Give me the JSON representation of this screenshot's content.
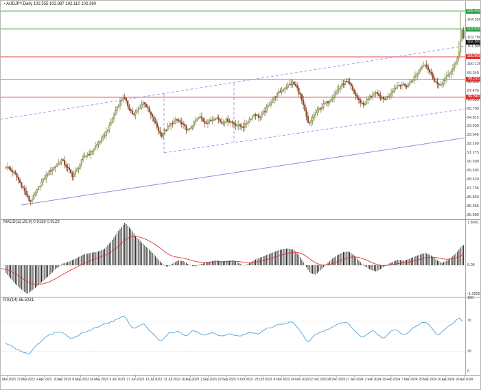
{
  "header": {
    "marker": "▪",
    "symbol": "AUDJPY,Daily",
    "ohlc": "102.555 102.887 102.110 102.360"
  },
  "colors": {
    "up_fill": "#ccd6a0",
    "up_border": "#6f7a38",
    "down_fill": "#a0522d",
    "down_border": "#7c3a1d",
    "green_line": "#86c98e",
    "red_line": "#f19090",
    "trend_dashed": "#9a9aee",
    "trend_solid": "#8c8cdc",
    "macd_bar": "#222222",
    "macd_signal": "#e03232",
    "rsi_line": "#4f9fd8",
    "tag_green": "#2f9e44",
    "tag_red": "#e03131",
    "tag_black": "#111111"
  },
  "price_axis": {
    "labels": [
      "104.550",
      "103.665",
      "102.780",
      "101.895",
      "101.010",
      "100.125",
      "99.240",
      "98.355",
      "97.470",
      "96.585",
      "95.700",
      "94.815",
      "93.930",
      "93.045",
      "92.160",
      "91.275",
      "90.390",
      "89.505",
      "88.620",
      "87.735",
      "86.850",
      "85.965",
      "85.080"
    ],
    "tags": [
      {
        "text": "105.430",
        "color": "green",
        "price": 105.43
      },
      {
        "text": "103.650",
        "color": "green",
        "price": 103.65
      },
      {
        "text": "102.360",
        "color": "black",
        "price": 102.36
      },
      {
        "text": "100.865",
        "color": "red",
        "price": 100.865
      },
      {
        "text": "98.615",
        "color": "red",
        "price": 98.615
      },
      {
        "text": "96.840",
        "color": "red",
        "price": 96.84
      }
    ]
  },
  "date_axis": [
    "1 Mar 2023",
    "17 Mar 2023",
    "4 Apr 2023",
    "20 Apr 2023",
    "8 May 2023",
    "24 May 2023",
    "9 Jun 2023",
    "27 Jun 2023",
    "13 Jul 2023",
    "31 Jul 2023",
    "16 Aug 2023",
    "1 Sep 2023",
    "19 Sep 2023",
    "5 Oct 2023",
    "23 Oct 2023",
    "8 Nov 2023",
    "24 Nov 2023",
    "12 Dec 2023",
    "28 Dec 2023",
    "17 Jan 2024",
    "2 Feb 2024",
    "20 Feb 2024",
    "7 Mar 2024",
    "25 Mar 2024",
    "10 Apr 2024",
    "26 Apr 2024"
  ],
  "chart_data": [
    {
      "type": "candlestick",
      "title": "AUDJPY, Daily",
      "ohlc_display": {
        "open": "102.555",
        "high": "102.887",
        "low": "102.110",
        "close": "102.360"
      },
      "y_range": [
        84.7,
        105.9
      ],
      "x_range_dates": [
        "1 Mar 2023",
        "26 Apr 2024"
      ],
      "close_path": [
        [
          0,
          90.3
        ],
        [
          10,
          89.8
        ],
        [
          20,
          89.2
        ],
        [
          30,
          88.0
        ],
        [
          42,
          86.4
        ],
        [
          50,
          87.3
        ],
        [
          58,
          88.3
        ],
        [
          68,
          89.3
        ],
        [
          78,
          89.9
        ],
        [
          88,
          90.6
        ],
        [
          96,
          89.8
        ],
        [
          104,
          89.0
        ],
        [
          112,
          89.8
        ],
        [
          120,
          90.9
        ],
        [
          130,
          91.3
        ],
        [
          138,
          92.0
        ],
        [
          148,
          92.8
        ],
        [
          158,
          94.0
        ],
        [
          168,
          95.8
        ],
        [
          178,
          96.9
        ],
        [
          186,
          95.8
        ],
        [
          193,
          95.0
        ],
        [
          200,
          95.7
        ],
        [
          208,
          96.4
        ],
        [
          216,
          95.3
        ],
        [
          224,
          94.3
        ],
        [
          233,
          93.0
        ],
        [
          241,
          93.7
        ],
        [
          249,
          94.3
        ],
        [
          257,
          94.6
        ],
        [
          265,
          94.0
        ],
        [
          273,
          93.5
        ],
        [
          281,
          94.3
        ],
        [
          289,
          94.9
        ],
        [
          297,
          94.3
        ],
        [
          305,
          94.5
        ],
        [
          313,
          94.9
        ],
        [
          321,
          94.3
        ],
        [
          329,
          94.6
        ],
        [
          337,
          94.3
        ],
        [
          345,
          94.0
        ],
        [
          353,
          93.9
        ],
        [
          361,
          94.6
        ],
        [
          369,
          95.2
        ],
        [
          377,
          94.8
        ],
        [
          385,
          95.6
        ],
        [
          392,
          96.3
        ],
        [
          400,
          97.0
        ],
        [
          408,
          97.5
        ],
        [
          416,
          97.9
        ],
        [
          424,
          98.3
        ],
        [
          430,
          97.9
        ],
        [
          436,
          97.0
        ],
        [
          443,
          95.3
        ],
        [
          448,
          94.0
        ],
        [
          454,
          94.9
        ],
        [
          462,
          95.6
        ],
        [
          470,
          96.1
        ],
        [
          478,
          96.5
        ],
        [
          486,
          97.2
        ],
        [
          494,
          97.9
        ],
        [
          502,
          98.4
        ],
        [
          508,
          98.1
        ],
        [
          514,
          97.3
        ],
        [
          521,
          96.5
        ],
        [
          528,
          96.1
        ],
        [
          536,
          96.8
        ],
        [
          544,
          97.3
        ],
        [
          551,
          96.9
        ],
        [
          558,
          96.6
        ],
        [
          566,
          97.2
        ],
        [
          574,
          97.8
        ],
        [
          582,
          98.2
        ],
        [
          590,
          97.9
        ],
        [
          598,
          98.5
        ],
        [
          606,
          99.2
        ],
        [
          612,
          99.9
        ],
        [
          618,
          100.2
        ],
        [
          624,
          99.4
        ],
        [
          630,
          98.7
        ],
        [
          638,
          97.9
        ],
        [
          645,
          98.5
        ],
        [
          652,
          99.1
        ],
        [
          658,
          99.7
        ],
        [
          663,
          100.4
        ],
        [
          667,
          101.4
        ],
        [
          670,
          102.9
        ],
        [
          672,
          103.7
        ],
        [
          674,
          102.7
        ],
        [
          676,
          102.36
        ]
      ],
      "spike_high": {
        "x": 669,
        "price": 105.35
      },
      "horizontal_lines": {
        "green": [
          105.43,
          103.65
        ],
        "red": [
          100.865,
          98.615,
          96.84
        ],
        "current_price": 102.36
      },
      "trendlines": [
        {
          "style": "dashed",
          "points": [
            [
              0,
              94.64
            ],
            [
              676,
              101.95
            ]
          ]
        },
        {
          "style": "dashed",
          "points": [
            [
              238,
              91.3
            ],
            [
              676,
              95.67
            ]
          ]
        },
        {
          "style": "dashed",
          "points": [
            [
              238,
              97.17
            ],
            [
              238,
              91.3
            ]
          ]
        },
        {
          "style": "dashed",
          "points": [
            [
              340,
              98.26
            ],
            [
              340,
              92.38
            ]
          ]
        },
        {
          "style": "solid",
          "points": [
            [
              30,
              86.1
            ],
            [
              676,
              92.79
            ]
          ]
        }
      ]
    },
    {
      "type": "bar",
      "subtype": "macd_histogram",
      "label": "MACD(12,26,9) 0.9138 0.9129",
      "axis_labels": [
        "1.8981",
        "0.00",
        "-1.2859"
      ],
      "y_range": [
        -1.2859,
        1.8981
      ],
      "values": [
        [
          0,
          -0.15
        ],
        [
          8,
          -0.38
        ],
        [
          18,
          -0.75
        ],
        [
          28,
          -1.05
        ],
        [
          38,
          -1.28
        ],
        [
          48,
          -1.05
        ],
        [
          58,
          -0.78
        ],
        [
          70,
          -0.45
        ],
        [
          80,
          -0.15
        ],
        [
          90,
          0.08
        ],
        [
          100,
          0.18
        ],
        [
          110,
          0.32
        ],
        [
          120,
          0.48
        ],
        [
          130,
          0.55
        ],
        [
          140,
          0.6
        ],
        [
          150,
          0.72
        ],
        [
          160,
          1.05
        ],
        [
          170,
          1.5
        ],
        [
          180,
          1.9
        ],
        [
          188,
          1.65
        ],
        [
          196,
          1.3
        ],
        [
          205,
          1.0
        ],
        [
          215,
          0.72
        ],
        [
          225,
          0.4
        ],
        [
          235,
          0.05
        ],
        [
          242,
          -0.08
        ],
        [
          250,
          0.08
        ],
        [
          258,
          0.22
        ],
        [
          266,
          0.18
        ],
        [
          274,
          0.02
        ],
        [
          282,
          -0.06
        ],
        [
          290,
          0.04
        ],
        [
          298,
          0.12
        ],
        [
          306,
          0.18
        ],
        [
          314,
          0.22
        ],
        [
          322,
          0.16
        ],
        [
          330,
          0.2
        ],
        [
          338,
          0.22
        ],
        [
          346,
          0.1
        ],
        [
          354,
          -0.02
        ],
        [
          362,
          0.1
        ],
        [
          370,
          0.25
        ],
        [
          378,
          0.35
        ],
        [
          386,
          0.45
        ],
        [
          394,
          0.55
        ],
        [
          402,
          0.65
        ],
        [
          410,
          0.72
        ],
        [
          418,
          0.75
        ],
        [
          426,
          0.7
        ],
        [
          434,
          0.45
        ],
        [
          442,
          0.05
        ],
        [
          450,
          -0.35
        ],
        [
          458,
          -0.42
        ],
        [
          466,
          -0.2
        ],
        [
          474,
          0.05
        ],
        [
          482,
          0.28
        ],
        [
          490,
          0.45
        ],
        [
          498,
          0.58
        ],
        [
          506,
          0.62
        ],
        [
          514,
          0.45
        ],
        [
          522,
          0.18
        ],
        [
          530,
          -0.05
        ],
        [
          538,
          -0.2
        ],
        [
          546,
          -0.28
        ],
        [
          554,
          -0.15
        ],
        [
          562,
          0.02
        ],
        [
          570,
          0.15
        ],
        [
          578,
          0.25
        ],
        [
          586,
          0.2
        ],
        [
          594,
          0.28
        ],
        [
          602,
          0.38
        ],
        [
          610,
          0.48
        ],
        [
          618,
          0.55
        ],
        [
          626,
          0.45
        ],
        [
          634,
          0.25
        ],
        [
          642,
          0.1
        ],
        [
          650,
          0.22
        ],
        [
          658,
          0.4
        ],
        [
          664,
          0.58
        ],
        [
          668,
          0.75
        ],
        [
          672,
          0.88
        ],
        [
          676,
          0.914
        ]
      ]
    },
    {
      "type": "line",
      "subtype": "rsi",
      "label": "RSI(14) 66.5031",
      "axis_labels": [
        "100",
        "70",
        "30",
        "0"
      ],
      "levels": [
        70,
        30
      ],
      "y_range": [
        0,
        100
      ],
      "values": [
        [
          0,
          45
        ],
        [
          10,
          40
        ],
        [
          20,
          34
        ],
        [
          30,
          30
        ],
        [
          42,
          26
        ],
        [
          52,
          38
        ],
        [
          62,
          46
        ],
        [
          75,
          53
        ],
        [
          88,
          57
        ],
        [
          100,
          46
        ],
        [
          112,
          51
        ],
        [
          125,
          57
        ],
        [
          140,
          61
        ],
        [
          155,
          67
        ],
        [
          170,
          73
        ],
        [
          180,
          77
        ],
        [
          192,
          60
        ],
        [
          200,
          64
        ],
        [
          208,
          67
        ],
        [
          218,
          56
        ],
        [
          233,
          44
        ],
        [
          245,
          53
        ],
        [
          258,
          57
        ],
        [
          270,
          50
        ],
        [
          282,
          57
        ],
        [
          295,
          51
        ],
        [
          310,
          55
        ],
        [
          322,
          50
        ],
        [
          335,
          54
        ],
        [
          350,
          49
        ],
        [
          362,
          56
        ],
        [
          375,
          52
        ],
        [
          388,
          60
        ],
        [
          400,
          64
        ],
        [
          412,
          67
        ],
        [
          424,
          69
        ],
        [
          432,
          62
        ],
        [
          443,
          48
        ],
        [
          448,
          42
        ],
        [
          456,
          50
        ],
        [
          466,
          55
        ],
        [
          478,
          60
        ],
        [
          490,
          65
        ],
        [
          502,
          70
        ],
        [
          508,
          66
        ],
        [
          516,
          56
        ],
        [
          528,
          49
        ],
        [
          536,
          55
        ],
        [
          544,
          58
        ],
        [
          551,
          50
        ],
        [
          558,
          47
        ],
        [
          566,
          54
        ],
        [
          574,
          59
        ],
        [
          582,
          55
        ],
        [
          590,
          52
        ],
        [
          598,
          58
        ],
        [
          606,
          63
        ],
        [
          614,
          67
        ],
        [
          622,
          69
        ],
        [
          630,
          58
        ],
        [
          638,
          51
        ],
        [
          645,
          57
        ],
        [
          652,
          62
        ],
        [
          658,
          66
        ],
        [
          663,
          70
        ],
        [
          668,
          75
        ],
        [
          672,
          73
        ],
        [
          676,
          66.5
        ]
      ]
    }
  ]
}
